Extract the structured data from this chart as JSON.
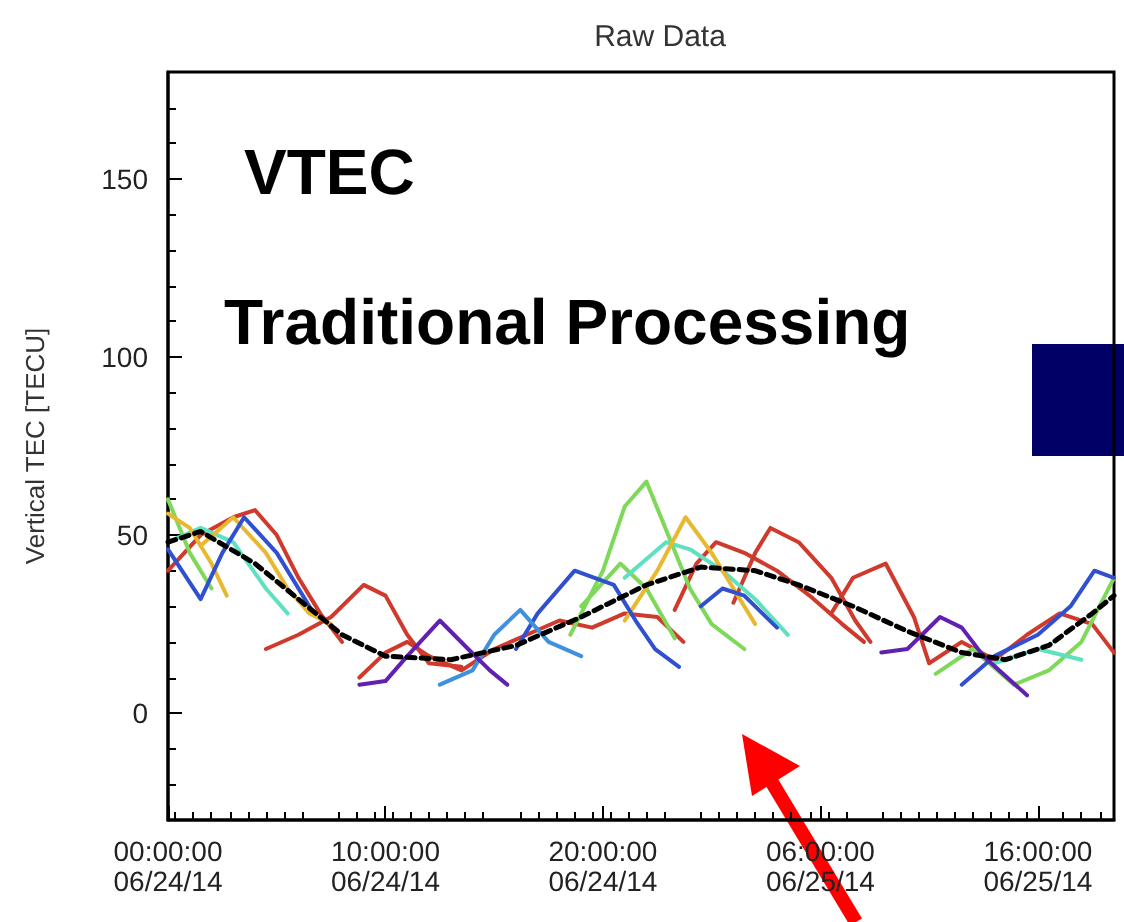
{
  "chart_data": {
    "type": "line",
    "title": "Raw Data",
    "ylabel": "Vertical TEC [TECU]",
    "annotations": [
      "VTEC",
      "Traditional Processing"
    ],
    "xlim": [
      "--06-24T00:00",
      "--06-25T19:30"
    ],
    "xticks": [
      {
        "value": "--06-24T00:00",
        "label": "00:00:00\n06/24/14"
      },
      {
        "value": "--06-24T10:00",
        "label": "10:00:00\n06/24/14"
      },
      {
        "value": "--06-24T20:00",
        "label": "20:00:00\n06/24/14"
      },
      {
        "value": "--06-25T06:00",
        "label": "06:00:00\n06/25/14"
      },
      {
        "value": "--06-25T16:00",
        "label": "16:00:00\n06/25/14"
      }
    ],
    "ylim": [
      -30,
      180
    ],
    "yticks": [
      0,
      50,
      100,
      150
    ],
    "grid": false,
    "marker": "none",
    "series": [
      {
        "color": "#d03a2c",
        "x": [
          "--06-24T00:00",
          "--06-24T01:30",
          "--06-24T03:00",
          "--06-24T04:00",
          "--06-24T05:00",
          "--06-24T06:00",
          "--06-24T07:00",
          "--06-24T08:00"
        ],
        "values": [
          40,
          50,
          55,
          57,
          50,
          38,
          28,
          20
        ]
      },
      {
        "color": "#d03a2c",
        "x": [
          "--06-24T04:30",
          "--06-24T06:00",
          "--06-24T07:30",
          "--06-24T09:00",
          "--06-24T10:00",
          "--06-24T11:00",
          "--06-24T12:00",
          "--06-24T13:30"
        ],
        "values": [
          18,
          22,
          27,
          36,
          33,
          22,
          14,
          13
        ]
      },
      {
        "color": "#d03a2c",
        "x": [
          "--06-24T08:48",
          "--06-24T10:00",
          "--06-24T11:00",
          "--06-24T12:00",
          "--06-24T13:30",
          "--06-24T15:00",
          "--06-24T16:30",
          "--06-24T18:00",
          "--06-24T19:30",
          "--06-24T21:00",
          "--06-24T22:30",
          "--06-24T23:42"
        ],
        "values": [
          10,
          17,
          20,
          16,
          12,
          18,
          22,
          26,
          24,
          28,
          27,
          20
        ]
      },
      {
        "color": "#d03a2c",
        "x": [
          "--06-25T02:00",
          "--06-25T03:00",
          "--06-25T03:42",
          "--06-25T05:00",
          "--06-25T06:30",
          "--06-25T07:36",
          "--06-25T08:18"
        ],
        "values": [
          31,
          45,
          52,
          48,
          38,
          26,
          20
        ]
      },
      {
        "color": "#d03a2c",
        "x": [
          "--06-24T23:18",
          "--06-25T00:18",
          "--06-25T01:12",
          "--06-25T02:30",
          "--06-25T04:00",
          "--06-25T05:30",
          "--06-25T07:00",
          "--06-25T08:00"
        ],
        "values": [
          29,
          42,
          48,
          45,
          40,
          33,
          25,
          20
        ]
      },
      {
        "color": "#d03a2c",
        "x": [
          "--06-25T06:30",
          "--06-25T07:30",
          "--06-25T09:00",
          "--06-25T10:18",
          "--06-25T11:00",
          "--06-25T12:30",
          "--06-25T14:00",
          "--06-25T15:30",
          "--06-25T17:00",
          "--06-25T18:30",
          "--06-25T19:30"
        ],
        "values": [
          28,
          38,
          42,
          27,
          14,
          20,
          15,
          22,
          28,
          25,
          17
        ]
      },
      {
        "color": "#7ed85a",
        "x": [
          "--06-24T00:00",
          "--06-24T01:00",
          "--06-24T02:00"
        ],
        "values": [
          60,
          45,
          35
        ]
      },
      {
        "color": "#7ed85a",
        "x": [
          "--06-24T18:30",
          "--06-24T20:00",
          "--06-24T21:00",
          "--06-24T22:00",
          "--06-24T23:00",
          "--06-25T00:00",
          "--06-25T01:00",
          "--06-25T02:30"
        ],
        "values": [
          22,
          40,
          58,
          65,
          50,
          35,
          25,
          18
        ]
      },
      {
        "color": "#7ed85a",
        "x": [
          "--06-24T19:00",
          "--06-24T20:48",
          "--06-24T22:00",
          "--06-24T23:18"
        ],
        "values": [
          30,
          42,
          35,
          21
        ]
      },
      {
        "color": "#7ed85a",
        "x": [
          "--06-25T11:18",
          "--06-25T13:00",
          "--06-25T14:54",
          "--06-25T16:30",
          "--06-25T18:00",
          "--06-25T19:30"
        ],
        "values": [
          11,
          18,
          8,
          12,
          20,
          38
        ]
      },
      {
        "color": "#5fe0c0",
        "x": [
          "--06-24T00:00",
          "--06-24T01:30",
          "--06-24T03:00",
          "--06-24T04:30",
          "--06-24T05:30"
        ],
        "values": [
          48,
          52,
          48,
          35,
          28
        ]
      },
      {
        "color": "#5fe0c0",
        "x": [
          "--06-24T21:00",
          "--06-24T22:54",
          "--06-25T00:00",
          "--06-25T01:30",
          "--06-25T03:00",
          "--06-25T04:30"
        ],
        "values": [
          38,
          48,
          46,
          40,
          32,
          22
        ]
      },
      {
        "color": "#5fe0c0",
        "x": [
          "--06-25T14:00",
          "--06-25T16:00",
          "--06-25T18:00"
        ],
        "values": [
          14,
          18,
          15
        ]
      },
      {
        "color": "#e8b830",
        "x": [
          "--06-24T00:00",
          "--06-24T01:00",
          "--06-24T02:00",
          "--06-24T02:42"
        ],
        "values": [
          56,
          52,
          42,
          33
        ]
      },
      {
        "color": "#e8b830",
        "x": [
          "--06-24T01:30",
          "--06-24T03:00",
          "--06-24T04:30",
          "--06-24T05:30",
          "--06-24T06:30",
          "--06-24T07:30"
        ],
        "values": [
          47,
          55,
          45,
          35,
          28,
          25
        ]
      },
      {
        "color": "#e8b830",
        "x": [
          "--06-24T21:00",
          "--06-24T22:30",
          "--06-24T23:48",
          "--06-25T01:00",
          "--06-25T02:00",
          "--06-25T03:00"
        ],
        "values": [
          26,
          40,
          55,
          45,
          35,
          25
        ]
      },
      {
        "color": "#3050d0",
        "x": [
          "--06-24T00:00",
          "--06-24T01:30",
          "--06-24T02:30",
          "--06-24T03:30",
          "--06-24T05:00",
          "--06-24T06:30"
        ],
        "values": [
          46,
          32,
          45,
          55,
          45,
          30
        ]
      },
      {
        "color": "#3050d0",
        "x": [
          "--06-24T16:00",
          "--06-24T17:00",
          "--06-24T18:42",
          "--06-24T20:30",
          "--06-24T21:30",
          "--06-24T22:24",
          "--06-24T23:30"
        ],
        "values": [
          18,
          28,
          40,
          36,
          26,
          18,
          13
        ]
      },
      {
        "color": "#4090e0",
        "x": [
          "--06-24T12:30",
          "--06-24T14:00",
          "--06-24T15:00",
          "--06-24T16:12",
          "--06-24T17:30",
          "--06-24T19:00"
        ],
        "values": [
          8,
          12,
          22,
          29,
          20,
          16
        ]
      },
      {
        "color": "#3050d0",
        "x": [
          "--06-25T12:30",
          "--06-25T14:00",
          "--06-25T16:00",
          "--06-25T17:30",
          "--06-25T18:36",
          "--06-25T19:30"
        ],
        "values": [
          8,
          16,
          22,
          30,
          40,
          38
        ]
      },
      {
        "color": "#3050d0",
        "x": [
          "--06-25T00:30",
          "--06-25T01:30",
          "--06-25T02:30",
          "--06-25T04:00"
        ],
        "values": [
          30,
          35,
          33,
          24
        ]
      },
      {
        "color": "#6020b0",
        "x": [
          "--06-24T08:48",
          "--06-24T10:00",
          "--06-24T11:00",
          "--06-24T12:30",
          "--06-24T13:48",
          "--06-24T14:48",
          "--06-24T15:36"
        ],
        "values": [
          8,
          9,
          16,
          26,
          18,
          12,
          8
        ]
      },
      {
        "color": "#6020b0",
        "x": [
          "--06-25T08:48",
          "--06-25T10:00",
          "--06-25T11:30",
          "--06-25T12:30",
          "--06-25T13:30",
          "--06-25T15:30"
        ],
        "values": [
          17,
          18,
          27,
          24,
          16,
          5
        ]
      },
      {
        "color": "#000000",
        "line_style": "dashed",
        "x": [
          "--06-24T00:00",
          "--06-24T01:30",
          "--06-24T04:00",
          "--06-24T06:00",
          "--06-24T08:00",
          "--06-24T10:00",
          "--06-24T13:00",
          "--06-24T16:00",
          "--06-24T19:00",
          "--06-24T22:00",
          "--06-25T00:30",
          "--06-25T03:00",
          "--06-25T05:00",
          "--06-25T07:30",
          "--06-25T10:00",
          "--06-25T12:30",
          "--06-25T14:30",
          "--06-25T16:30",
          "--06-25T18:30",
          "--06-25T19:30"
        ],
        "values": [
          48,
          51,
          42,
          32,
          22,
          16,
          15,
          19,
          27,
          36,
          41,
          40,
          36,
          30,
          23,
          17,
          15,
          19,
          28,
          33
        ]
      }
    ]
  }
}
